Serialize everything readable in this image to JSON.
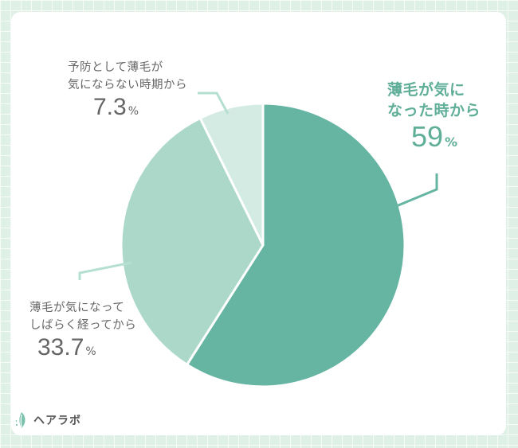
{
  "chart_data": {
    "type": "pie",
    "slices": [
      {
        "label_lines": [
          "薄毛が気に",
          "なった時から"
        ],
        "value": 59,
        "value_text": "59",
        "color": "#66b5a3"
      },
      {
        "label_lines": [
          "薄毛が気になって",
          "しばらく経ってから"
        ],
        "value": 33.7,
        "value_text": "33.7",
        "color": "#acd8ca"
      },
      {
        "label_lines": [
          "予防として薄毛が",
          "気にならない時期から"
        ],
        "value": 7.3,
        "value_text": "7.3",
        "color": "#d3ebe3"
      }
    ],
    "unit": "%"
  },
  "logo": {
    "text": "ヘアラボ"
  },
  "colors": {
    "leader": "#b5dfd2",
    "main_accent": "#5fae98"
  }
}
